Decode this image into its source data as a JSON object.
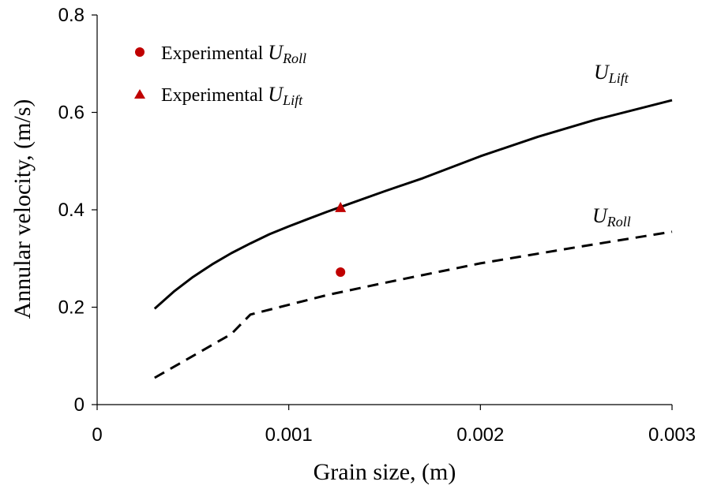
{
  "chart_data": {
    "type": "line",
    "xlabel": "Grain size, (m)",
    "ylabel": "Annular velocity, (m/s)",
    "xlim": [
      0,
      0.003
    ],
    "ylim": [
      0,
      0.8
    ],
    "x_ticks": [
      "0",
      "0.001",
      "0.002",
      "0.003"
    ],
    "y_ticks": [
      "0",
      "0.2",
      "0.4",
      "0.6",
      "0.8"
    ],
    "x_tick_values": [
      0,
      0.001,
      0.002,
      0.003
    ],
    "y_tick_values": [
      0,
      0.2,
      0.4,
      0.6,
      0.8
    ],
    "grid": false,
    "legend_position": "top-left",
    "series": [
      {
        "name": "U_Lift",
        "label_main": "U",
        "label_sub": "Lift",
        "style": "solid",
        "color": "#000000",
        "x": [
          0.0003,
          0.0004,
          0.0005,
          0.0006,
          0.0007,
          0.0008,
          0.0009,
          0.001,
          0.0011,
          0.0012,
          0.0013,
          0.0015,
          0.0017,
          0.002,
          0.0023,
          0.0026,
          0.003
        ],
        "y": [
          0.197,
          0.232,
          0.262,
          0.288,
          0.311,
          0.331,
          0.35,
          0.366,
          0.381,
          0.396,
          0.41,
          0.438,
          0.465,
          0.51,
          0.55,
          0.585,
          0.625
        ]
      },
      {
        "name": "U_Roll",
        "label_main": "U",
        "label_sub": "Roll",
        "style": "dashed",
        "color": "#000000",
        "x": [
          0.0003,
          0.0005,
          0.0007,
          0.00075,
          0.0008,
          0.00085,
          0.001,
          0.0012,
          0.0015,
          0.002,
          0.0025,
          0.003
        ],
        "y": [
          0.055,
          0.1,
          0.145,
          0.165,
          0.185,
          0.19,
          0.205,
          0.225,
          0.25,
          0.29,
          0.323,
          0.355
        ]
      }
    ],
    "points": [
      {
        "name": "Experimental U_Roll",
        "legend_text": "Experimental ",
        "legend_main": "U",
        "legend_sub": "Roll",
        "marker": "circle",
        "color": "#C00000",
        "x": 0.00127,
        "y": 0.272
      },
      {
        "name": "Experimental U_Lift",
        "legend_text": "Experimental ",
        "legend_main": "U",
        "legend_sub": "Lift",
        "marker": "triangle",
        "color": "#C00000",
        "x": 0.00127,
        "y": 0.405
      }
    ]
  }
}
